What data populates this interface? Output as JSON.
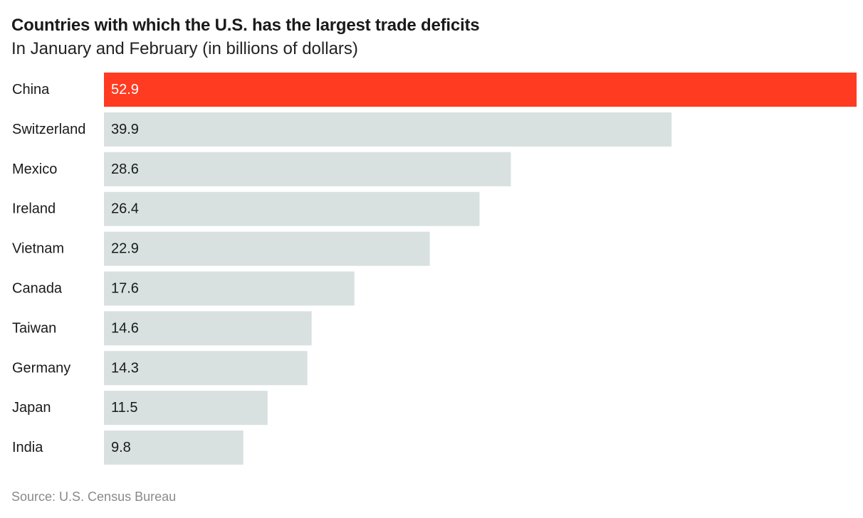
{
  "title": "Countries with which the U.S. has the largest trade deficits",
  "subtitle": "In January and February (in billions of dollars)",
  "source": "Source: U.S. Census Bureau",
  "colors": {
    "highlight": "#ff3b21",
    "bar": "#d8e1e0",
    "highlight_label": "#ffffff",
    "bar_label": "#1a1a1a",
    "category_label": "#1a1a1a"
  },
  "chart_data": {
    "type": "bar",
    "orientation": "horizontal",
    "title": "Countries with which the U.S. has the largest trade deficits",
    "subtitle": "In January and February (in billions of dollars)",
    "xlabel": "",
    "ylabel": "",
    "grid": false,
    "categories": [
      "China",
      "Switzerland",
      "Mexico",
      "Ireland",
      "Vietnam",
      "Canada",
      "Taiwan",
      "Germany",
      "Japan",
      "India"
    ],
    "values": [
      52.9,
      39.9,
      28.6,
      26.4,
      22.9,
      17.6,
      14.6,
      14.3,
      11.5,
      9.8
    ],
    "value_labels": [
      "52.9",
      "39.9",
      "28.6",
      "26.4",
      "22.9",
      "17.6",
      "14.6",
      "14.3",
      "11.5",
      "9.8"
    ],
    "highlighted_category": "China",
    "xlim": [
      0,
      52.9
    ]
  }
}
